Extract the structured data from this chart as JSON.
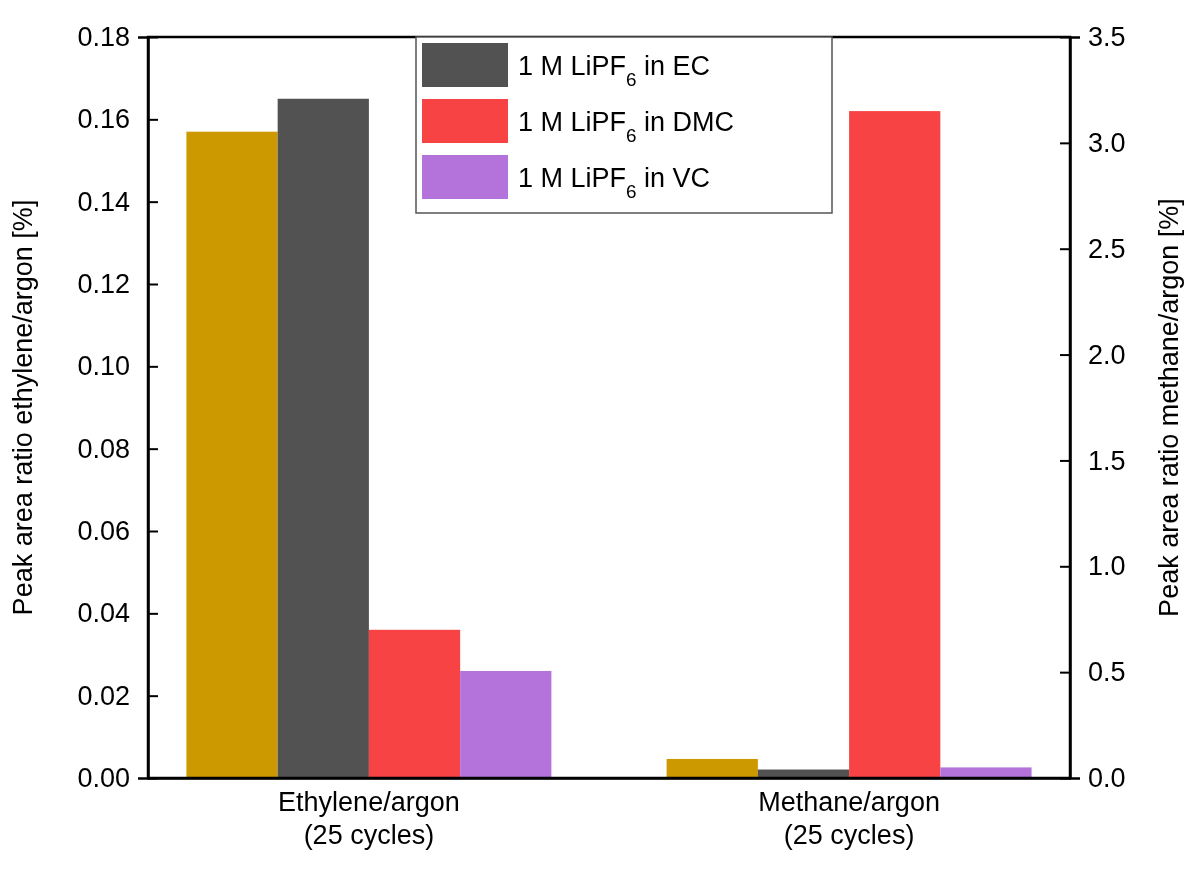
{
  "chart_data": {
    "type": "bar",
    "categories": [
      "Ethylene/argon\n(25 cycles)",
      "Methane/argon\n(25 cycles)"
    ],
    "ylabel": "Peak area ratio ethylene/argon [%]",
    "y2label": "Peak area ratio methane/argon [%]",
    "ylim": [
      0,
      0.18
    ],
    "yticks": [
      {
        "value": 0,
        "label": "0.00"
      },
      {
        "value": 0.02,
        "label": "0.02"
      },
      {
        "value": 0.04,
        "label": "0.04"
      },
      {
        "value": 0.06,
        "label": "0.06"
      },
      {
        "value": 0.08,
        "label": "0.08"
      },
      {
        "value": 0.1,
        "label": "0.10"
      },
      {
        "value": 0.12,
        "label": "0.12"
      },
      {
        "value": 0.14,
        "label": "0.14"
      },
      {
        "value": 0.16,
        "label": "0.16"
      },
      {
        "value": 0.18,
        "label": "0.18"
      }
    ],
    "y2lim": [
      0,
      3.5
    ],
    "y2ticks": [
      {
        "value": 0,
        "label": "0.0"
      },
      {
        "value": 0.5,
        "label": "0.5"
      },
      {
        "value": 1,
        "label": "1.0"
      },
      {
        "value": 1.5,
        "label": "1.5"
      },
      {
        "value": 2,
        "label": "2.0"
      },
      {
        "value": 2.5,
        "label": "2.5"
      },
      {
        "value": 3,
        "label": "3.0"
      },
      {
        "value": 3.5,
        "label": "3.5"
      }
    ],
    "legend": "top",
    "grid": false,
    "series": [
      {
        "color": "#cc9900",
        "values": [
          0.157,
          null
        ]
      },
      {
        "name": "1 M LiPF$_{6}$ in EC",
        "color": "#525252",
        "values": [
          0.165,
          null
        ]
      },
      {
        "name": "1 M LiPF$_{6}$ in DMC",
        "color": "#f74343",
        "values": [
          0.036,
          null
        ]
      },
      {
        "name": "1 M LiPF$_{6}$ in VC",
        "color": "#b373db",
        "values": [
          0.026,
          null
        ]
      },
      {
        "color": "#cc9900",
        "values": [
          null,
          0.09
        ],
        "axis": "y2"
      },
      {
        "color": "#525252",
        "values": [
          null,
          0.04
        ],
        "axis": "y2"
      },
      {
        "color": "#f74343",
        "values": [
          null,
          3.15
        ],
        "axis": "y2"
      },
      {
        "color": "#b373db",
        "values": [
          null,
          0.05
        ],
        "axis": "y2"
      }
    ]
  }
}
